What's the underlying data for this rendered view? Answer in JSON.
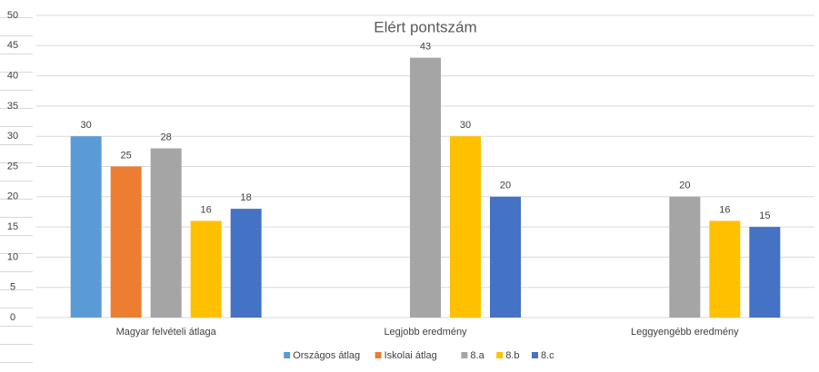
{
  "chart_data": {
    "type": "bar",
    "title": "Elért pontszám",
    "categories": [
      "Magyar felvételi átlaga",
      "Legjobb eredmény",
      "Leggyengébb eredmény"
    ],
    "series": [
      {
        "name": "Országos átlag",
        "color": "#5b9bd5",
        "values": [
          30,
          null,
          null
        ]
      },
      {
        "name": "Iskolai átlag",
        "color": "#ed7d31",
        "values": [
          25,
          null,
          null
        ]
      },
      {
        "name": "8.a",
        "color": "#a5a5a5",
        "values": [
          28,
          43,
          20
        ]
      },
      {
        "name": "8.b",
        "color": "#ffc000",
        "values": [
          16,
          30,
          16
        ]
      },
      {
        "name": "8.c",
        "color": "#4472c4",
        "values": [
          18,
          20,
          15
        ]
      }
    ],
    "ylim": [
      0,
      50
    ],
    "yticks": [
      0,
      5,
      10,
      15,
      20,
      25,
      30,
      35,
      40,
      45,
      50
    ],
    "grid": true,
    "legend": "bottom"
  }
}
